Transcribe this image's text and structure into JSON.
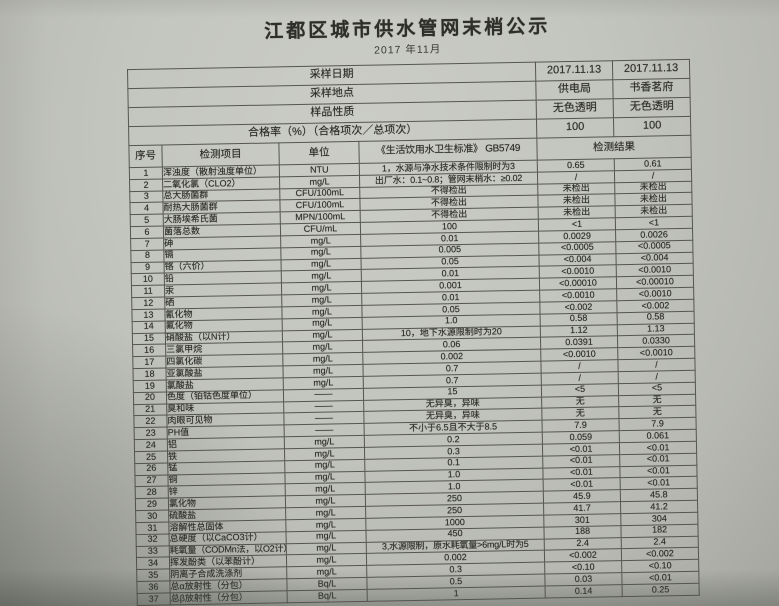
{
  "doc": {
    "title": "江都区城市供水管网末梢公示",
    "subtitle": "2017 年11月"
  },
  "table": {
    "meta_rows": [
      {
        "label": "采样日期",
        "v1": "2017.11.13",
        "v2": "2017.11.13"
      },
      {
        "label": "采样地点",
        "v1": "供电局",
        "v2": "书香茗府"
      },
      {
        "label": "样品性质",
        "v1": "无色透明",
        "v2": "无色透明"
      },
      {
        "label": "合格率（%）（合格项次／总项次）",
        "v1": "100",
        "v2": "100"
      }
    ],
    "header": {
      "seq": "序号",
      "item": "检测项目",
      "unit": "单位",
      "standard": "《生活饮用水卫生标准》 GB5749",
      "result": "检测结果"
    },
    "rows": [
      [
        "1",
        "浑浊度（散射浊度单位）",
        "NTU",
        "1，水源与净水技术条件限制时为3",
        "0.65",
        "0.61"
      ],
      [
        "2",
        "二氧化氯（CLO2）",
        "mg/L",
        "出厂水：0.1~0.8；管网末梢水：≥0.02",
        "/",
        "/"
      ],
      [
        "3",
        "总大肠菌群",
        "CFU/100mL",
        "不得检出",
        "未检出",
        "未检出"
      ],
      [
        "4",
        "耐热大肠菌群",
        "CFU/100mL",
        "不得检出",
        "未检出",
        "未检出"
      ],
      [
        "5",
        "大肠埃希氏菌",
        "MPN/100mL",
        "不得检出",
        "未检出",
        "未检出"
      ],
      [
        "6",
        "菌落总数",
        "CFU/mL",
        "100",
        "<1",
        "<1"
      ],
      [
        "7",
        "砷",
        "mg/L",
        "0.01",
        "0.0029",
        "0.0026"
      ],
      [
        "8",
        "镉",
        "mg/L",
        "0.005",
        "<0.0005",
        "<0.0005"
      ],
      [
        "9",
        "铬（六价）",
        "mg/L",
        "0.05",
        "<0.004",
        "<0.004"
      ],
      [
        "10",
        "铅",
        "mg/L",
        "0.01",
        "<0.0010",
        "<0.0010"
      ],
      [
        "11",
        "汞",
        "mg/L",
        "0.001",
        "<0.00010",
        "<0.00010"
      ],
      [
        "12",
        "硒",
        "mg/L",
        "0.01",
        "<0.0010",
        "<0.0010"
      ],
      [
        "13",
        "氰化物",
        "mg/L",
        "0.05",
        "<0.002",
        "<0.002"
      ],
      [
        "14",
        "氟化物",
        "mg/L",
        "1.0",
        "0.58",
        "0.58"
      ],
      [
        "15",
        "硝酸盐（以N计）",
        "mg/L",
        "10，地下水源限制时为20",
        "1.12",
        "1.13"
      ],
      [
        "16",
        "三氯甲烷",
        "mg/L",
        "0.06",
        "0.0391",
        "0.0330"
      ],
      [
        "17",
        "四氯化碳",
        "mg/L",
        "0.002",
        "<0.0010",
        "<0.0010"
      ],
      [
        "18",
        "亚氯酸盐",
        "mg/L",
        "0.7",
        "/",
        "/"
      ],
      [
        "19",
        "氯酸盐",
        "mg/L",
        "0.7",
        "/",
        "/"
      ],
      [
        "20",
        "色度（铂钴色度单位）",
        "——",
        "15",
        "<5",
        "<5"
      ],
      [
        "21",
        "臭和味",
        "——",
        "无异臭，异味",
        "无",
        "无"
      ],
      [
        "22",
        "肉眼可见物",
        "——",
        "无异臭，异味",
        "无",
        "无"
      ],
      [
        "23",
        "PH值",
        "——",
        "不小于6.5且不大于8.5",
        "7.9",
        "7.9"
      ],
      [
        "24",
        "铝",
        "mg/L",
        "0.2",
        "0.059",
        "0.061"
      ],
      [
        "25",
        "铁",
        "mg/L",
        "0.3",
        "<0.01",
        "<0.01"
      ],
      [
        "26",
        "锰",
        "mg/L",
        "0.1",
        "<0.01",
        "<0.01"
      ],
      [
        "27",
        "铜",
        "mg/L",
        "1.0",
        "<0.01",
        "<0.01"
      ],
      [
        "28",
        "锌",
        "mg/L",
        "1.0",
        "<0.01",
        "<0.01"
      ],
      [
        "29",
        "氯化物",
        "mg/L",
        "250",
        "45.9",
        "45.8"
      ],
      [
        "30",
        "硫酸盐",
        "mg/L",
        "250",
        "41.7",
        "41.2"
      ],
      [
        "31",
        "溶解性总固体",
        "mg/L",
        "1000",
        "301",
        "304"
      ],
      [
        "32",
        "总硬度（以CaCO3计）",
        "mg/L",
        "450",
        "188",
        "182"
      ],
      [
        "33",
        "耗氧量（CODMn法，以O2计）",
        "mg/L",
        "3,水源限制，原水耗氧量>6mg/L时为5",
        "2.4",
        "2.4"
      ],
      [
        "34",
        "挥发酚类（以苯酚计）",
        "mg/L",
        "0.002",
        "<0.002",
        "<0.002"
      ],
      [
        "35",
        "阴离子合成洗涤剂",
        "mg/L",
        "0.3",
        "<0.10",
        "<0.10"
      ],
      [
        "36",
        "总α放射性（分包）",
        "Bq/L",
        "0.5",
        "0.03",
        "<0.01"
      ],
      [
        "37",
        "总β放射性（分包）",
        "Bq/L",
        "1",
        "0.14",
        "0.25"
      ]
    ]
  }
}
